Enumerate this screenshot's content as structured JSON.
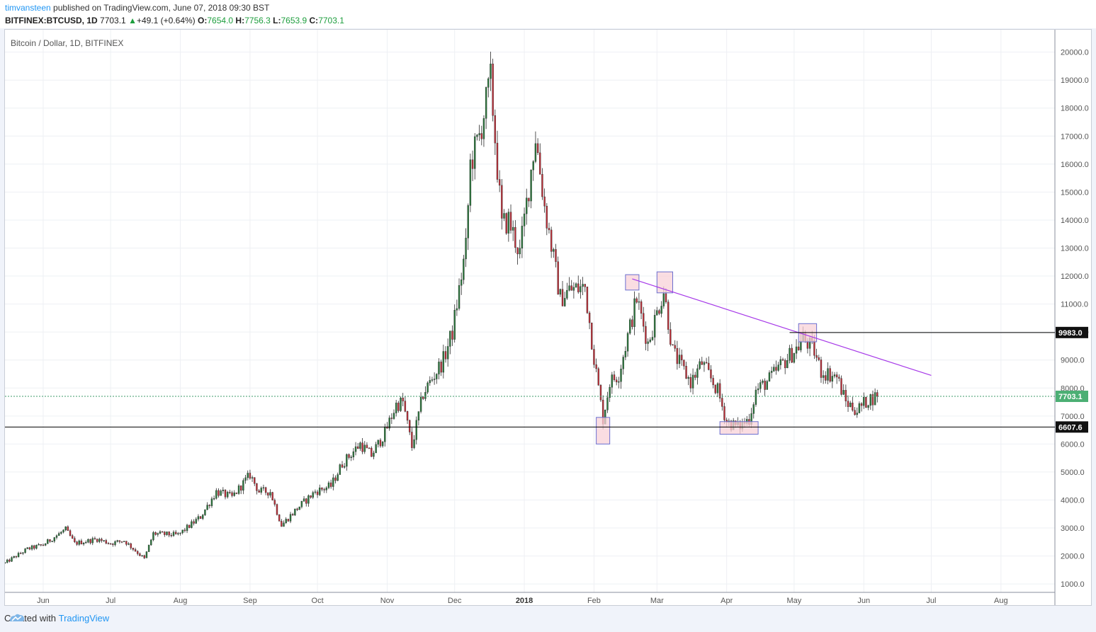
{
  "header": {
    "author": "timvansteen",
    "published_text": "published on TradingView.com, June 07, 2018 09:30 BST",
    "symbol": "BITFINEX:BTCUSD, 1D",
    "last_price": "7703.1",
    "change_arrow": "▲",
    "change": "+49.1 (+0.64%)",
    "open_label": "O:",
    "open": "7654.0",
    "high_label": "H:",
    "high": "7756.3",
    "low_label": "L:",
    "low": "7653.9",
    "close_label": "C:",
    "close": "7703.1"
  },
  "footer": {
    "created_with": "Created with",
    "brand": "TradingView"
  },
  "colors": {
    "up": "#2b7a3d",
    "down": "#c1303a",
    "grid": "#eef0f4",
    "trendline": "#a638e8",
    "box_fill": "#f8d2d8",
    "box_stroke": "#6b6fd0",
    "current_price_badge": "#4caf74"
  },
  "chart_data": {
    "type": "candlestick",
    "title": "Bitcoin / Dollar, 1D, BITFINEX",
    "y_ticks": [
      1000,
      2000,
      3000,
      4000,
      5000,
      6000,
      7000,
      8000,
      9000,
      10000,
      11000,
      12000,
      13000,
      14000,
      15000,
      16000,
      17000,
      18000,
      19000,
      20000
    ],
    "y_tick_labels": [
      "1000.0",
      "2000.0",
      "3000.0",
      "4000.0",
      "5000.0",
      "6000.0",
      "7000.0",
      "8000.0",
      "9000.0",
      "10000.0",
      "11000.0",
      "12000.0",
      "13000.0",
      "14000.0",
      "15000.0",
      "16000.0",
      "17000.0",
      "18000.0",
      "19000.0",
      "20000.0"
    ],
    "x_ticks": [
      {
        "date": "2017-06-01",
        "label": "Jun"
      },
      {
        "date": "2017-07-01",
        "label": "Jul"
      },
      {
        "date": "2017-08-01",
        "label": "Aug"
      },
      {
        "date": "2017-09-01",
        "label": "Sep"
      },
      {
        "date": "2017-10-01",
        "label": "Oct"
      },
      {
        "date": "2017-11-01",
        "label": "Nov"
      },
      {
        "date": "2017-12-01",
        "label": "Dec"
      },
      {
        "date": "2018-01-01",
        "label": "2018"
      },
      {
        "date": "2018-02-01",
        "label": "Feb"
      },
      {
        "date": "2018-03-01",
        "label": "Mar"
      },
      {
        "date": "2018-04-01",
        "label": "Apr"
      },
      {
        "date": "2018-05-01",
        "label": "May"
      },
      {
        "date": "2018-06-01",
        "label": "Jun"
      },
      {
        "date": "2018-07-01",
        "label": "Jul"
      },
      {
        "date": "2018-08-01",
        "label": "Aug"
      }
    ],
    "x_range": [
      "2017-05-15",
      "2018-08-25"
    ],
    "y_range": [
      700,
      20800
    ],
    "price_path": [
      {
        "date": "2017-05-15",
        "price": 1750
      },
      {
        "date": "2017-05-25",
        "price": 2250
      },
      {
        "date": "2017-06-01",
        "price": 2400
      },
      {
        "date": "2017-06-11",
        "price": 2950
      },
      {
        "date": "2017-06-15",
        "price": 2450
      },
      {
        "date": "2017-06-25",
        "price": 2600
      },
      {
        "date": "2017-07-01",
        "price": 2450
      },
      {
        "date": "2017-07-07",
        "price": 2550
      },
      {
        "date": "2017-07-16",
        "price": 1900
      },
      {
        "date": "2017-07-20",
        "price": 2800
      },
      {
        "date": "2017-07-31",
        "price": 2750
      },
      {
        "date": "2017-08-10",
        "price": 3400
      },
      {
        "date": "2017-08-17",
        "price": 4300
      },
      {
        "date": "2017-08-24",
        "price": 4100
      },
      {
        "date": "2017-09-01",
        "price": 4900
      },
      {
        "date": "2017-09-05",
        "price": 4300
      },
      {
        "date": "2017-09-10",
        "price": 4300
      },
      {
        "date": "2017-09-15",
        "price": 3100
      },
      {
        "date": "2017-09-22",
        "price": 3700
      },
      {
        "date": "2017-09-30",
        "price": 4300
      },
      {
        "date": "2017-10-07",
        "price": 4500
      },
      {
        "date": "2017-10-12",
        "price": 5300
      },
      {
        "date": "2017-10-20",
        "price": 6000
      },
      {
        "date": "2017-10-25",
        "price": 5600
      },
      {
        "date": "2017-10-31",
        "price": 6400
      },
      {
        "date": "2017-11-05",
        "price": 7400
      },
      {
        "date": "2017-11-08",
        "price": 7500
      },
      {
        "date": "2017-11-12",
        "price": 5900
      },
      {
        "date": "2017-11-17",
        "price": 7800
      },
      {
        "date": "2017-11-26",
        "price": 9000
      },
      {
        "date": "2017-11-30",
        "price": 10000
      },
      {
        "date": "2017-12-06",
        "price": 13000
      },
      {
        "date": "2017-12-08",
        "price": 16000
      },
      {
        "date": "2017-12-12",
        "price": 17000
      },
      {
        "date": "2017-12-17",
        "price": 19000
      },
      {
        "date": "2017-12-22",
        "price": 13800
      },
      {
        "date": "2017-12-25",
        "price": 14000
      },
      {
        "date": "2017-12-30",
        "price": 12800
      },
      {
        "date": "2018-01-06",
        "price": 17000
      },
      {
        "date": "2018-01-10",
        "price": 14500
      },
      {
        "date": "2018-01-17",
        "price": 11200
      },
      {
        "date": "2018-01-21",
        "price": 11500
      },
      {
        "date": "2018-01-28",
        "price": 11600
      },
      {
        "date": "2018-02-01",
        "price": 9100
      },
      {
        "date": "2018-02-05",
        "price": 6900
      },
      {
        "date": "2018-02-08",
        "price": 8200
      },
      {
        "date": "2018-02-12",
        "price": 8500
      },
      {
        "date": "2018-02-20",
        "price": 11200
      },
      {
        "date": "2018-02-25",
        "price": 9600
      },
      {
        "date": "2018-03-04",
        "price": 11500
      },
      {
        "date": "2018-03-08",
        "price": 9300
      },
      {
        "date": "2018-03-16",
        "price": 8200
      },
      {
        "date": "2018-03-21",
        "price": 8900
      },
      {
        "date": "2018-03-28",
        "price": 7900
      },
      {
        "date": "2018-04-01",
        "price": 6800
      },
      {
        "date": "2018-04-06",
        "price": 6600
      },
      {
        "date": "2018-04-11",
        "price": 6900
      },
      {
        "date": "2018-04-14",
        "price": 7900
      },
      {
        "date": "2018-04-20",
        "price": 8300
      },
      {
        "date": "2018-04-25",
        "price": 8800
      },
      {
        "date": "2018-05-03",
        "price": 9500
      },
      {
        "date": "2018-05-05",
        "price": 9800
      },
      {
        "date": "2018-05-10",
        "price": 9300
      },
      {
        "date": "2018-05-13",
        "price": 8600
      },
      {
        "date": "2018-05-20",
        "price": 8400
      },
      {
        "date": "2018-05-24",
        "price": 7500
      },
      {
        "date": "2018-05-29",
        "price": 7200
      },
      {
        "date": "2018-06-03",
        "price": 7600
      },
      {
        "date": "2018-06-07",
        "price": 7703.1
      }
    ],
    "horizontal_lines": [
      {
        "value": 9983.0,
        "label": "9983.0",
        "start_date": "2018-04-29"
      },
      {
        "value": 6607.6,
        "label": "6607.6",
        "start_date": "2017-05-15"
      }
    ],
    "current_price": {
      "value": 7703.1,
      "label": "7703.1"
    },
    "trendline": {
      "from": {
        "date": "2018-02-18",
        "price": 11900
      },
      "to": {
        "date": "2018-07-01",
        "price": 8450
      }
    },
    "highlight_boxes": [
      {
        "date_from": "2018-02-02",
        "date_to": "2018-02-08",
        "price_from": 6000,
        "price_to": 6950
      },
      {
        "date_from": "2018-02-15",
        "date_to": "2018-02-21",
        "price_from": 11500,
        "price_to": 12050
      },
      {
        "date_from": "2018-03-01",
        "date_to": "2018-03-08",
        "price_from": 11400,
        "price_to": 12150
      },
      {
        "date_from": "2018-03-29",
        "date_to": "2018-04-15",
        "price_from": 6350,
        "price_to": 6800
      },
      {
        "date_from": "2018-05-03",
        "date_to": "2018-05-11",
        "price_from": 9650,
        "price_to": 10300
      }
    ]
  }
}
